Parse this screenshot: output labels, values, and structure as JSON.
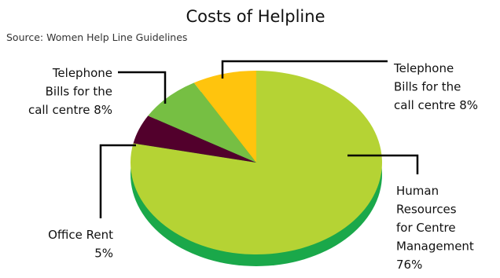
{
  "chart_data": {
    "type": "pie",
    "style": "3d",
    "title": "Costs of Helpline",
    "subtitle": "Source: Women Help Line Guidelines",
    "depth_color": "#1aa84a",
    "slices": [
      {
        "label_lines": [
          "Human",
          "Resources",
          "for  Centre",
          "Management",
          "76%"
        ],
        "value": 76,
        "color": "#b5d334"
      },
      {
        "label_lines": [
          "Office Rent",
          "5%"
        ],
        "value": 5,
        "color": "#52002c"
      },
      {
        "label_lines": [
          "Telephone",
          "Bills for the",
          "call centre 8%"
        ],
        "value": 8,
        "color": "#76bf43"
      },
      {
        "label_lines": [
          "Telephone",
          "Bills for the",
          "call centre 8%"
        ],
        "value": 8,
        "color": "#ffc40d"
      }
    ]
  }
}
